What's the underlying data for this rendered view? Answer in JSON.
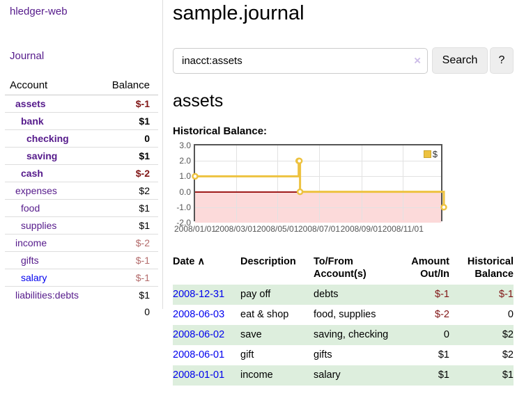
{
  "app_title": "hledger-web",
  "sidebar": {
    "journal_link": "Journal",
    "accounts": {
      "header_account": "Account",
      "header_balance": "Balance",
      "rows": [
        {
          "name": "assets",
          "balance": "$-1",
          "indent": 1,
          "bold": true,
          "balance_class": "neg"
        },
        {
          "name": "bank",
          "balance": "$1",
          "indent": 2,
          "bold": true,
          "balance_class": "pos"
        },
        {
          "name": "checking",
          "balance": "0",
          "indent": 3,
          "bold": true,
          "balance_class": "pos"
        },
        {
          "name": "saving",
          "balance": "$1",
          "indent": 3,
          "bold": true,
          "balance_class": "pos"
        },
        {
          "name": "cash",
          "balance": "$-2",
          "indent": 2,
          "bold": true,
          "balance_class": "neg"
        },
        {
          "name": "expenses",
          "balance": "$2",
          "indent": 1,
          "bold": false,
          "balance_class": "pos"
        },
        {
          "name": "food",
          "balance": "$1",
          "indent": 2,
          "bold": false,
          "balance_class": "pos"
        },
        {
          "name": "supplies",
          "balance": "$1",
          "indent": 2,
          "bold": false,
          "balance_class": "pos"
        },
        {
          "name": "income",
          "balance": "$-2",
          "indent": 1,
          "bold": false,
          "balance_class": "negsoft"
        },
        {
          "name": "gifts",
          "balance": "$-1",
          "indent": 2,
          "bold": false,
          "balance_class": "negsoft"
        },
        {
          "name": "salary",
          "balance": "$-1",
          "indent": 2,
          "bold": false,
          "balance_class": "negsoft",
          "blue": true
        },
        {
          "name": "liabilities:debts",
          "balance": "$1",
          "indent": 1,
          "bold": false,
          "balance_class": "pos"
        }
      ],
      "total": "0"
    }
  },
  "main": {
    "title": "sample.journal",
    "search": {
      "value": "inacct:assets",
      "clear_icon": "×",
      "search_label": "Search",
      "help_label": "?"
    },
    "heading": "assets",
    "chart_title": "Historical Balance:"
  },
  "chart_data": {
    "type": "line",
    "title": "Historical Balance",
    "step": true,
    "color": "#edc240",
    "legend_label": "$",
    "legend_position": "top-right",
    "x_min": "2008-01-01",
    "x_max": "2008-12-31",
    "points": [
      {
        "date": "2008-01-01",
        "value": 1
      },
      {
        "date": "2008-06-01",
        "value": 2
      },
      {
        "date": "2008-06-02",
        "value": 2
      },
      {
        "date": "2008-06-03",
        "value": 0
      },
      {
        "date": "2008-12-31",
        "value": -1
      }
    ],
    "ylim": [
      -2,
      3
    ],
    "yticks": [
      "3.0",
      "2.0",
      "1.0",
      "0.0",
      "-1.0",
      "-2.0"
    ],
    "xticks": [
      "2008/01/01",
      "2008/03/01",
      "2008/05/01",
      "2008/07/01",
      "2008/09/01",
      "2008/11/01"
    ],
    "grid": true,
    "negative_region_fill": "#fcdada",
    "zero_line_color": "#9e1b1b"
  },
  "transactions": {
    "headers": [
      "Date",
      "Description",
      "To/From Account(s)",
      "Amount Out/In",
      "Historical Balance"
    ],
    "sort_icon": "∧",
    "rows": [
      {
        "date": "2008-12-31",
        "description": "pay off",
        "accounts": "debts",
        "amount": "$-1",
        "amount_negative": true,
        "balance": "$-1",
        "balance_negative": true
      },
      {
        "date": "2008-06-03",
        "description": "eat & shop",
        "accounts": "food, supplies",
        "amount": "$-2",
        "amount_negative": true,
        "balance": "0",
        "balance_negative": false
      },
      {
        "date": "2008-06-02",
        "description": "save",
        "accounts": "saving, checking",
        "amount": "0",
        "amount_negative": false,
        "balance": "$2",
        "balance_negative": false
      },
      {
        "date": "2008-06-01",
        "description": "gift",
        "accounts": "gifts",
        "amount": "$1",
        "amount_negative": false,
        "balance": "$2",
        "balance_negative": false
      },
      {
        "date": "2008-01-01",
        "description": "income",
        "accounts": "salary",
        "amount": "$1",
        "amount_negative": false,
        "balance": "$1",
        "balance_negative": false
      }
    ]
  }
}
